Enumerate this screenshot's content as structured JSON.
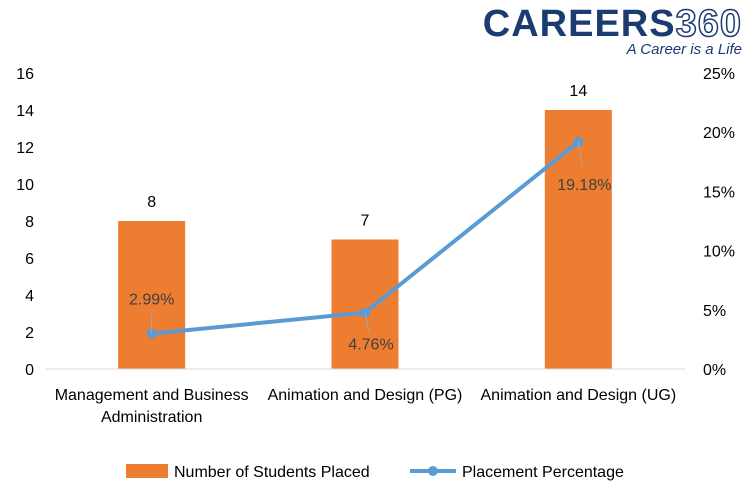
{
  "logo": {
    "text": "CAREERS",
    "number": "360",
    "tagline": "A Career is a Life"
  },
  "colors": {
    "bar": "#ED7D31",
    "line": "#5B9BD5",
    "axis": "#D9D9D9",
    "brand": "#1B3B72"
  },
  "chart_data": {
    "type": "bar",
    "categories": [
      "Management and Business Administration",
      "Animation and Design (PG)",
      "Animation and Design (UG)"
    ],
    "category_lines": [
      [
        "Management and Business",
        "Administration"
      ],
      [
        "Animation and Design (PG)"
      ],
      [
        "Animation and Design (UG)"
      ]
    ],
    "series": [
      {
        "name": "Number of Students Placed",
        "type": "bar",
        "axis": "left",
        "values": [
          8,
          7,
          14
        ],
        "labels": [
          "8",
          "7",
          "14"
        ]
      },
      {
        "name": "Placement Percentage",
        "type": "line",
        "axis": "right",
        "values": [
          2.99,
          4.76,
          19.18
        ],
        "labels": [
          "2.99%",
          "4.76%",
          "19.18%"
        ]
      }
    ],
    "ylim": [
      0,
      16
    ],
    "y_ticks": [
      "0",
      "2",
      "4",
      "6",
      "8",
      "10",
      "12",
      "14",
      "16"
    ],
    "y2lim": [
      0,
      25
    ],
    "y2_ticks": [
      "0%",
      "5%",
      "10%",
      "15%",
      "20%",
      "25%"
    ],
    "grid": false,
    "legend": "bottom"
  }
}
